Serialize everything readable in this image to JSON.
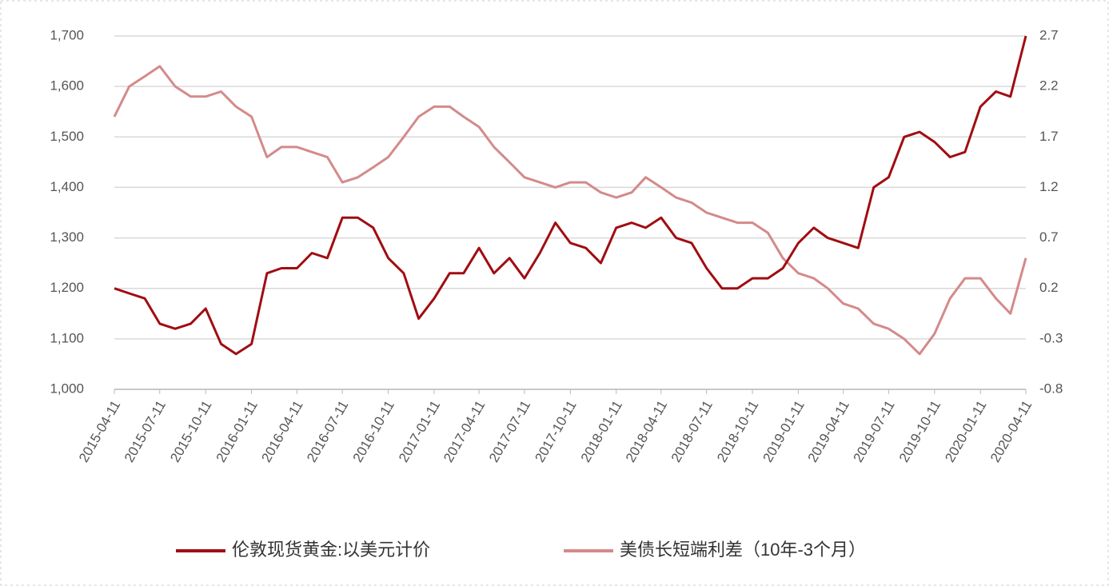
{
  "chart_data": {
    "type": "line",
    "x": [
      "2015-04-11",
      "2015-05-11",
      "2015-06-11",
      "2015-07-11",
      "2015-08-11",
      "2015-09-11",
      "2015-10-11",
      "2015-11-11",
      "2015-12-11",
      "2016-01-11",
      "2016-02-11",
      "2016-03-11",
      "2016-04-11",
      "2016-05-11",
      "2016-06-11",
      "2016-07-11",
      "2016-08-11",
      "2016-09-11",
      "2016-10-11",
      "2016-11-11",
      "2016-12-11",
      "2017-01-11",
      "2017-02-11",
      "2017-03-11",
      "2017-04-11",
      "2017-05-11",
      "2017-06-11",
      "2017-07-11",
      "2017-08-11",
      "2017-09-11",
      "2017-10-11",
      "2017-11-11",
      "2017-12-11",
      "2018-01-11",
      "2018-02-11",
      "2018-03-11",
      "2018-04-11",
      "2018-05-11",
      "2018-06-11",
      "2018-07-11",
      "2018-08-11",
      "2018-09-11",
      "2018-10-11",
      "2018-11-11",
      "2018-12-11",
      "2019-01-11",
      "2019-02-11",
      "2019-03-11",
      "2019-04-11",
      "2019-05-11",
      "2019-06-11",
      "2019-07-11",
      "2019-08-11",
      "2019-09-11",
      "2019-10-11",
      "2019-11-11",
      "2019-12-11",
      "2020-01-11",
      "2020-02-11",
      "2020-03-11",
      "2020-04-11"
    ],
    "series": [
      {
        "name": "伦敦现货黄金:以美元计价",
        "color": "#a00d12",
        "values": [
          1200,
          1190,
          1180,
          1130,
          1120,
          1130,
          1160,
          1090,
          1070,
          1090,
          1230,
          1240,
          1240,
          1270,
          1260,
          1340,
          1340,
          1320,
          1260,
          1230,
          1140,
          1180,
          1230,
          1230,
          1280,
          1230,
          1260,
          1220,
          1270,
          1330,
          1290,
          1280,
          1250,
          1320,
          1330,
          1320,
          1340,
          1300,
          1290,
          1240,
          1200,
          1200,
          1220,
          1220,
          1240,
          1290,
          1320,
          1300,
          1290,
          1280,
          1400,
          1420,
          1500,
          1510,
          1490,
          1460,
          1470,
          1560,
          1590,
          1580,
          1700
        ]
      },
      {
        "name": "美债长短端利差（10年-3个月）",
        "color": "#d48a8a",
        "axis": "y2",
        "values": [
          1.9,
          2.2,
          2.3,
          2.4,
          2.2,
          2.1,
          2.1,
          2.15,
          2.0,
          1.9,
          1.5,
          1.6,
          1.6,
          1.55,
          1.5,
          1.25,
          1.3,
          1.4,
          1.5,
          1.7,
          1.9,
          2.0,
          2.0,
          1.9,
          1.8,
          1.6,
          1.45,
          1.3,
          1.25,
          1.2,
          1.25,
          1.25,
          1.15,
          1.1,
          1.15,
          1.3,
          1.2,
          1.1,
          1.05,
          0.95,
          0.9,
          0.85,
          0.85,
          0.75,
          0.5,
          0.35,
          0.3,
          0.2,
          0.05,
          0.0,
          -0.15,
          -0.2,
          -0.3,
          -0.45,
          -0.25,
          0.1,
          0.3,
          0.3,
          0.1,
          -0.05,
          0.5
        ]
      }
    ],
    "xlim": [
      "2015-04-11",
      "2020-04-11"
    ],
    "xticks": [
      "2015-04-11",
      "2015-07-11",
      "2015-10-11",
      "2016-01-11",
      "2016-04-11",
      "2016-07-11",
      "2016-10-11",
      "2017-01-11",
      "2017-04-11",
      "2017-07-11",
      "2017-10-11",
      "2018-01-11",
      "2018-04-11",
      "2018-07-11",
      "2018-10-11",
      "2019-01-11",
      "2019-04-11",
      "2019-07-11",
      "2019-10-11",
      "2020-01-11",
      "2020-04-11"
    ],
    "ylim": [
      1000,
      1700
    ],
    "yticks": [
      {
        "value": 1000,
        "label": "1,000"
      },
      {
        "value": 1100,
        "label": "1,100"
      },
      {
        "value": 1200,
        "label": "1,200"
      },
      {
        "value": 1300,
        "label": "1,300"
      },
      {
        "value": 1400,
        "label": "1,400"
      },
      {
        "value": 1500,
        "label": "1,500"
      },
      {
        "value": 1600,
        "label": "1,600"
      },
      {
        "value": 1700,
        "label": "1,700"
      }
    ],
    "y2lim": [
      -0.8,
      2.7
    ],
    "y2ticks": [
      -0.8,
      -0.3,
      0.2,
      0.7,
      1.2,
      1.7,
      2.2,
      2.7
    ],
    "grid": true,
    "legend": "bottom"
  }
}
